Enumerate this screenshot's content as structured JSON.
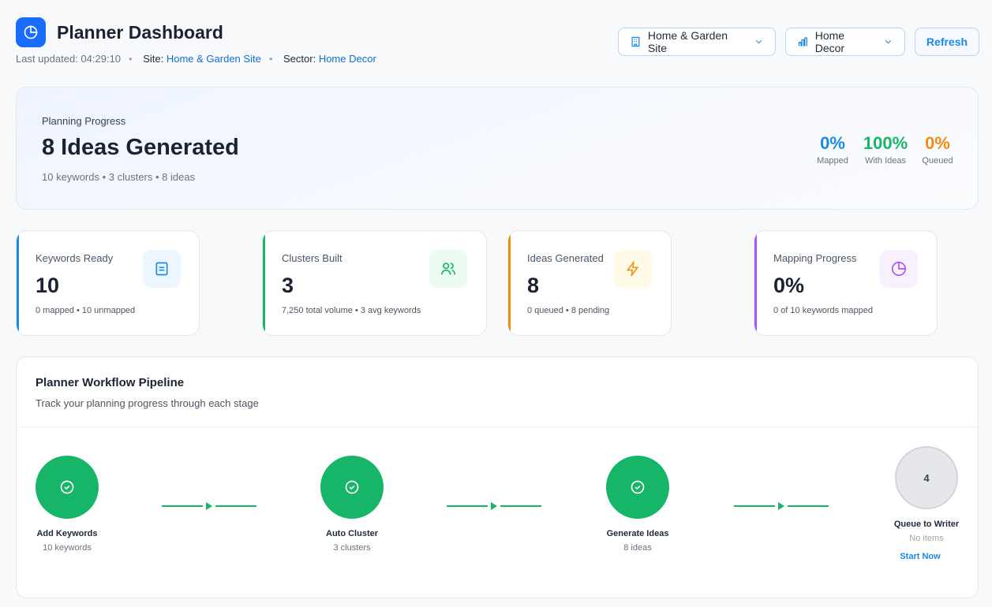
{
  "header": {
    "title": "Planner Dashboard",
    "last_updated_label": "Last updated:",
    "last_updated": "04:29:10",
    "site_label": "Site:",
    "site": "Home & Garden Site",
    "sector_label": "Sector:",
    "sector": "Home Decor"
  },
  "controls": {
    "site_select": "Home & Garden Site",
    "sector_select": "Home Decor",
    "refresh": "Refresh"
  },
  "hero": {
    "kicker": "Planning Progress",
    "headline": "8 Ideas Generated",
    "summary": "10 keywords • 3 clusters • 8 ideas",
    "metrics": [
      {
        "value": "0%",
        "label": "Mapped",
        "color": "#1a8ae6"
      },
      {
        "value": "100%",
        "label": "With Ideas",
        "color": "#16b567"
      },
      {
        "value": "0%",
        "label": "Queued",
        "color": "#f28c0f"
      }
    ]
  },
  "cards": [
    {
      "label": "Keywords Ready",
      "value": "10",
      "detail": "0 mapped • 10 unmapped",
      "color": "#1a8ae6",
      "icon": "document-icon"
    },
    {
      "label": "Clusters Built",
      "value": "3",
      "detail": "7,250 total volume • 3 avg keywords",
      "color": "#16b567",
      "icon": "users-icon"
    },
    {
      "label": "Ideas Generated",
      "value": "8",
      "detail": "0 queued • 8 pending",
      "color": "#f28c0f",
      "icon": "bolt-icon"
    },
    {
      "label": "Mapping Progress",
      "value": "0%",
      "detail": "0 of 10 keywords mapped",
      "color": "#a855f7",
      "icon": "pie-chart-icon"
    }
  ],
  "pipeline": {
    "title": "Planner Workflow Pipeline",
    "subtitle": "Track your planning progress through each stage",
    "steps": [
      {
        "name": "Add Keywords",
        "count": "10 keywords"
      },
      {
        "name": "Auto Cluster",
        "count": "3 clusters"
      },
      {
        "name": "Generate Ideas",
        "count": "8 ideas"
      },
      {
        "name": "Queue to Writer",
        "count": "No items",
        "number": "4",
        "action": "Start Now"
      }
    ]
  }
}
